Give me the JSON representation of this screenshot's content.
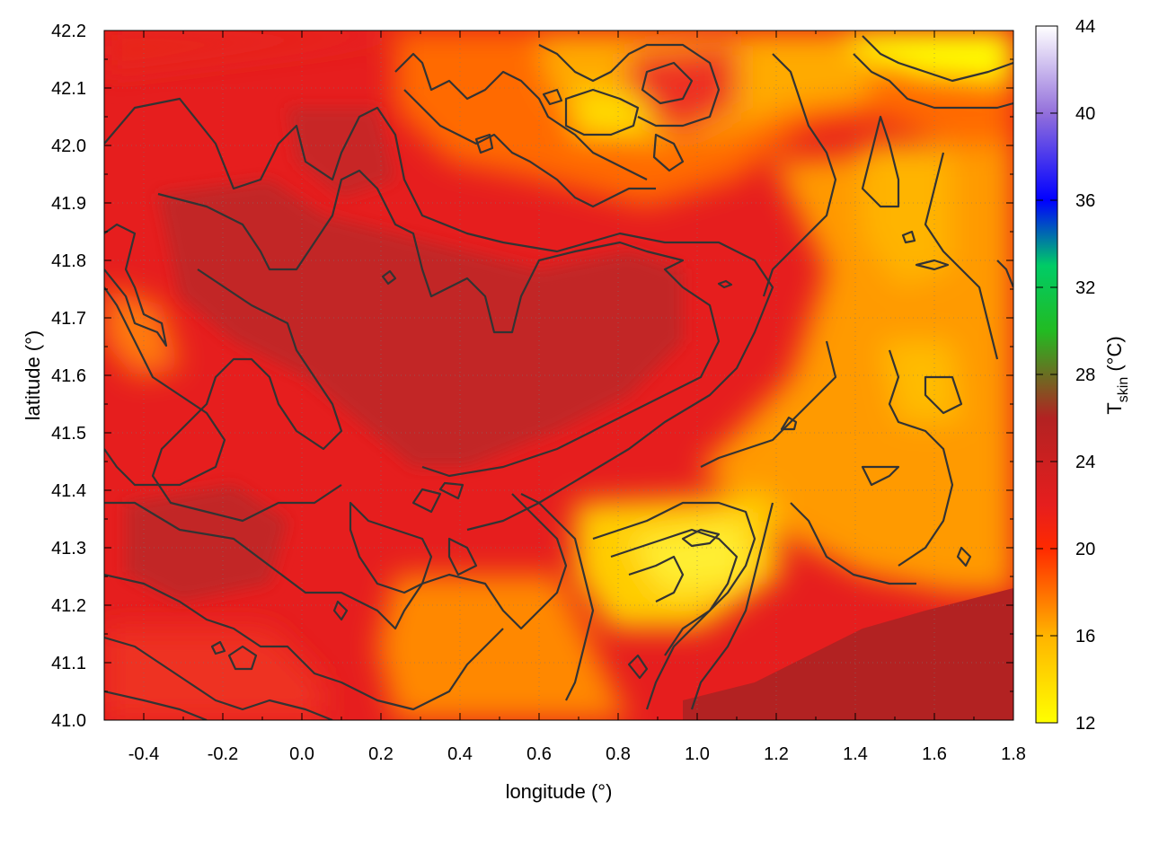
{
  "chart_data": {
    "type": "heatmap",
    "title": "",
    "xlabel": "longitude (°)",
    "ylabel": "latitude (°)",
    "xlim": [
      -0.5,
      1.8
    ],
    "ylim": [
      41.0,
      42.2
    ],
    "x_ticks": [
      "-0.4",
      "-0.2",
      "0.0",
      "0.2",
      "0.4",
      "0.6",
      "0.8",
      "1.0",
      "1.2",
      "1.4",
      "1.6",
      "1.8"
    ],
    "y_ticks": [
      "41.0",
      "41.1",
      "41.2",
      "41.3",
      "41.4",
      "41.5",
      "41.6",
      "41.7",
      "41.8",
      "41.9",
      "42.0",
      "42.1",
      "42.2"
    ],
    "colorbar": {
      "label_main": "T",
      "label_sub": "skin",
      "label_unit": " (°C)",
      "range": [
        12,
        44
      ],
      "ticks": [
        "12",
        "16",
        "20",
        "24",
        "28",
        "32",
        "36",
        "40",
        "44"
      ],
      "stops": [
        {
          "value": 12,
          "color": "#ffff00"
        },
        {
          "value": 16,
          "color": "#ffb400"
        },
        {
          "value": 20,
          "color": "#ff2a00"
        },
        {
          "value": 22,
          "color": "#e61e1e"
        },
        {
          "value": 26,
          "color": "#b22222"
        },
        {
          "value": 30,
          "color": "#22bb22"
        },
        {
          "value": 33,
          "color": "#00cc66"
        },
        {
          "value": 36,
          "color": "#0000ff"
        },
        {
          "value": 40,
          "color": "#9370db"
        },
        {
          "value": 44,
          "color": "#ffffff"
        }
      ]
    },
    "grid": "dotted",
    "contours": true
  }
}
